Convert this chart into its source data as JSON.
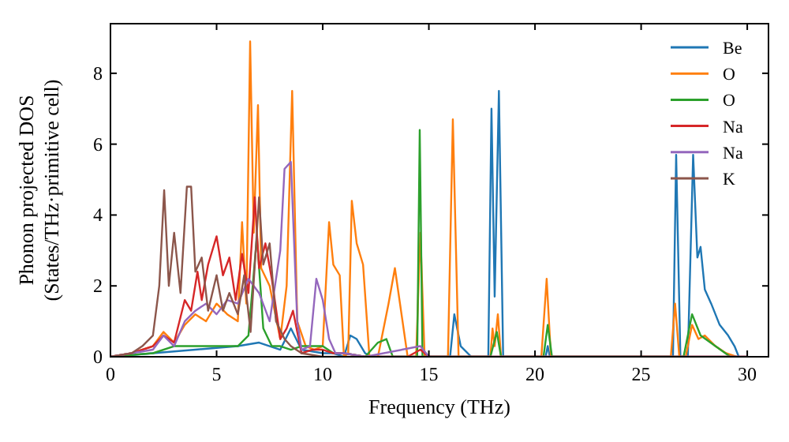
{
  "chart_data": {
    "type": "line",
    "xlabel": "Frequency (THz)",
    "ylabel": "Phonon projected DOS\n(States/THz·primitive cell)",
    "xlim": [
      0,
      31
    ],
    "ylim": [
      0,
      9.4
    ],
    "xticks": [
      0,
      5,
      10,
      15,
      20,
      25,
      30
    ],
    "yticks": [
      0,
      2,
      4,
      6,
      8
    ],
    "grid": false,
    "legend": "top right",
    "marker": "none",
    "line_style": "solid",
    "series": [
      {
        "name": "Be",
        "color": "#1f77b4",
        "x": [
          0,
          1,
          2,
          3,
          4,
          5,
          6,
          7,
          7.5,
          8,
          8.5,
          9,
          10,
          10.5,
          11,
          11.3,
          11.6,
          12,
          12.3,
          13,
          13.3,
          14,
          14.5,
          15,
          16,
          16.2,
          16.5,
          17,
          17.8,
          17.95,
          18.1,
          18.3,
          18.5,
          19,
          20.5,
          20.6,
          20.7,
          26,
          26.5,
          26.65,
          26.85,
          27.2,
          27.45,
          27.65,
          27.8,
          28,
          28.3,
          28.7,
          29.1,
          29.4,
          29.6
        ],
        "values": [
          0,
          0.05,
          0.1,
          0.15,
          0.2,
          0.25,
          0.3,
          0.4,
          0.3,
          0.2,
          0.8,
          0.2,
          0.1,
          0.1,
          0,
          0.6,
          0.5,
          0.1,
          0,
          0,
          0,
          0,
          0,
          0,
          0,
          1.2,
          0.3,
          0,
          0,
          7.0,
          1.7,
          7.5,
          0,
          0,
          0,
          0.3,
          0,
          0,
          0,
          5.7,
          0,
          0,
          5.7,
          2.8,
          3.1,
          1.9,
          1.5,
          0.9,
          0.6,
          0.3,
          0
        ]
      },
      {
        "name": "O",
        "color": "#ff7f0e",
        "x": [
          0,
          1,
          2,
          2.5,
          3,
          3.5,
          4,
          4.5,
          5,
          5.5,
          6,
          6.2,
          6.4,
          6.58,
          6.75,
          6.95,
          7.1,
          7.5,
          8,
          8.3,
          8.56,
          8.8,
          9.2,
          9.6,
          10,
          10.3,
          10.5,
          10.8,
          11,
          11.2,
          11.37,
          11.6,
          11.9,
          12.2,
          12.6,
          13.1,
          13.4,
          14,
          14.4,
          14.6,
          14.8,
          15.5,
          15.9,
          16.13,
          16.4,
          17,
          17.9,
          18.0,
          18.1,
          18.25,
          18.4,
          20.3,
          20.55,
          20.75,
          26,
          26.4,
          26.6,
          26.8,
          27.1,
          27.4,
          27.7,
          28,
          28.5,
          29,
          29.5
        ],
        "values": [
          0,
          0.1,
          0.3,
          0.7,
          0.4,
          0.9,
          1.2,
          1.0,
          1.5,
          1.2,
          1.0,
          3.8,
          1.5,
          8.9,
          3.5,
          7.1,
          2.5,
          2.0,
          0.5,
          2.0,
          7.5,
          1.0,
          0.3,
          0.2,
          0.3,
          3.8,
          2.6,
          2.3,
          0,
          0.1,
          4.4,
          3.2,
          2.6,
          0,
          0,
          1.5,
          2.5,
          0,
          0,
          3.5,
          0,
          0,
          0,
          6.7,
          0,
          0,
          0,
          0.8,
          0.3,
          1.2,
          0,
          0,
          2.2,
          0,
          0,
          0,
          1.5,
          0,
          0,
          0.9,
          0.5,
          0.6,
          0.3,
          0.1,
          0
        ]
      },
      {
        "name": "O",
        "color": "#2ca02c",
        "x": [
          0,
          2,
          3,
          4,
          5,
          6,
          6.5,
          6.9,
          7.2,
          7.6,
          8,
          8.5,
          9,
          9.5,
          10,
          10.5,
          11,
          12,
          12.6,
          13,
          13.3,
          14,
          14.45,
          14.57,
          14.7,
          15,
          17.9,
          18.2,
          18.4,
          20.4,
          20.6,
          20.8,
          27,
          27.4,
          27.8,
          28.5,
          29.2
        ],
        "values": [
          0,
          0.1,
          0.3,
          0.3,
          0.3,
          0.3,
          0.6,
          3.4,
          0.8,
          0.3,
          0.3,
          0.2,
          0.3,
          0.3,
          0.3,
          0.1,
          0.1,
          0,
          0.4,
          0.5,
          0,
          0,
          0,
          6.4,
          0,
          0,
          0,
          0.7,
          0,
          0,
          0.9,
          0,
          0,
          1.2,
          0.6,
          0.3,
          0
        ]
      },
      {
        "name": "Na",
        "color": "#d62728",
        "x": [
          0,
          1,
          2,
          2.5,
          3,
          3.5,
          3.8,
          4.1,
          4.3,
          4.6,
          5,
          5.3,
          5.6,
          5.9,
          6.2,
          6.5,
          6.8,
          7.0,
          7.3,
          7.6,
          8,
          8.3,
          8.6,
          9,
          9.5,
          10,
          10.5,
          11,
          12,
          13,
          14,
          14.6,
          15,
          20,
          30
        ],
        "values": [
          0,
          0.1,
          0.3,
          0.6,
          0.4,
          1.6,
          1.3,
          2.4,
          1.6,
          2.6,
          3.4,
          2.3,
          2.8,
          1.6,
          2.9,
          1.8,
          4.5,
          2.5,
          3.2,
          2.2,
          0.5,
          0.8,
          1.3,
          0.1,
          0.2,
          0.2,
          0.1,
          0.1,
          0,
          0,
          0,
          0.2,
          0,
          0,
          0
        ]
      },
      {
        "name": "Na",
        "color": "#9467bd",
        "x": [
          0,
          1,
          2,
          2.5,
          3,
          3.5,
          4,
          4.5,
          5,
          5.5,
          6,
          6.5,
          7,
          7.5,
          8,
          8.2,
          8.5,
          8.8,
          9,
          9.4,
          9.7,
          10,
          10.3,
          10.6,
          11,
          12,
          14.6,
          15,
          20,
          30
        ],
        "values": [
          0,
          0.1,
          0.2,
          0.6,
          0.3,
          1.0,
          1.3,
          1.5,
          1.2,
          1.6,
          1.5,
          2.2,
          1.8,
          1.0,
          3.0,
          5.3,
          5.5,
          1.0,
          0.2,
          0.3,
          2.2,
          1.6,
          0.5,
          0.1,
          0.1,
          0,
          0.3,
          0,
          0,
          0
        ]
      },
      {
        "name": "K",
        "color": "#8c564b",
        "x": [
          0,
          1,
          1.5,
          2,
          2.3,
          2.53,
          2.75,
          3.0,
          3.3,
          3.6,
          3.8,
          4.0,
          4.3,
          4.6,
          5.0,
          5.3,
          5.6,
          6.0,
          6.3,
          6.6,
          7.0,
          7.2,
          7.5,
          7.8,
          8.2,
          8.5,
          9,
          10,
          12,
          20,
          30
        ],
        "values": [
          0,
          0.1,
          0.3,
          0.6,
          2.0,
          4.7,
          2.0,
          3.5,
          1.8,
          4.8,
          4.8,
          2.4,
          2.8,
          1.3,
          2.3,
          1.3,
          1.8,
          1.2,
          2.3,
          0.7,
          4.5,
          2.6,
          3.2,
          1.0,
          0.5,
          0.3,
          0.1,
          0,
          0,
          0,
          0
        ]
      }
    ]
  }
}
